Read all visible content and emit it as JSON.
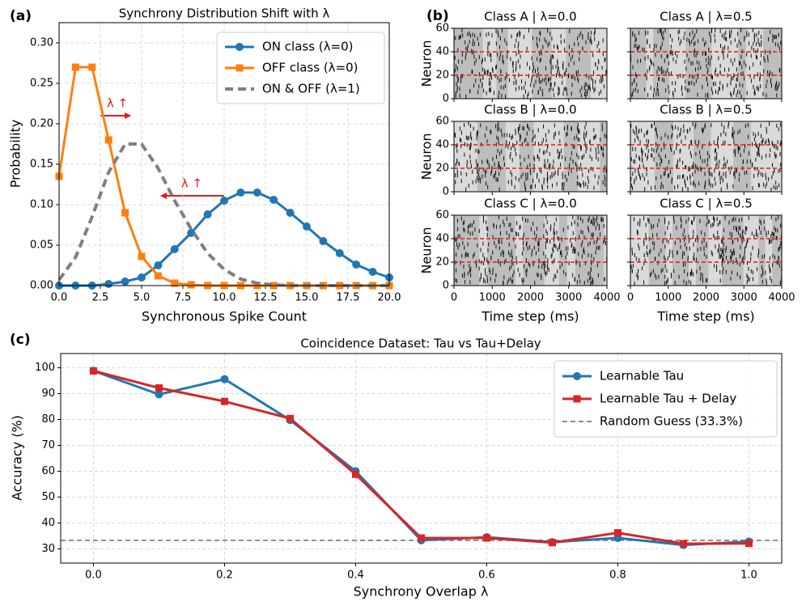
{
  "chart_data": [
    {
      "type": "line",
      "label": "(a)",
      "title": "Synchrony Distribution Shift with λ",
      "xlabel": "Synchronous Spike Count",
      "ylabel": "Probability",
      "x": [
        0,
        1,
        2,
        3,
        4,
        5,
        6,
        7,
        8,
        9,
        10,
        11,
        12,
        13,
        14,
        15,
        16,
        17,
        18,
        19,
        20
      ],
      "series": [
        {
          "name": "ON class (λ=0)",
          "color": "#1f77b4",
          "marker": "circle",
          "dash": "solid",
          "values": [
            0,
            0,
            0,
            0.002,
            0.005,
            0.01,
            0.025,
            0.045,
            0.065,
            0.088,
            0.105,
            0.115,
            0.115,
            0.106,
            0.09,
            0.073,
            0.055,
            0.04,
            0.026,
            0.017,
            0.01
          ]
        },
        {
          "name": "OFF class (λ=0)",
          "color": "#ff7f0e",
          "marker": "square",
          "dash": "solid",
          "values": [
            0.135,
            0.27,
            0.27,
            0.18,
            0.09,
            0.036,
            0.012,
            0.003,
            0.001,
            0,
            0,
            0,
            0,
            0,
            0,
            0,
            0,
            0,
            0,
            0,
            0
          ]
        },
        {
          "name": "ON & OFF (λ=1)",
          "color": "#7f7f7f",
          "marker": "none",
          "dash": "dashed",
          "values": [
            0.007,
            0.035,
            0.085,
            0.14,
            0.175,
            0.175,
            0.145,
            0.105,
            0.07,
            0.04,
            0.02,
            0.008,
            0.003,
            0.001,
            0,
            0,
            0,
            0,
            0,
            0,
            0
          ]
        }
      ],
      "xlim": [
        0,
        20
      ],
      "xticks": [
        {
          "value": 0,
          "label": "0.0"
        },
        2.5,
        {
          "value": 5,
          "label": "5.0"
        },
        7.5,
        {
          "value": 10,
          "label": "10.0"
        },
        12.5,
        {
          "value": 15,
          "label": "15.0"
        },
        17.5,
        {
          "value": 20,
          "label": "20.0"
        }
      ],
      "ylim": [
        0,
        0.325
      ],
      "yticks": [
        {
          "value": 0,
          "label": "0.00"
        },
        {
          "value": 0.05,
          "label": "0.05"
        },
        {
          "value": 0.1,
          "label": "0.10"
        },
        {
          "value": 0.15,
          "label": "0.15"
        },
        {
          "value": 0.2,
          "label": "0.20"
        },
        {
          "value": 0.25,
          "label": "0.25"
        },
        {
          "value": 0.3,
          "label": "0.30"
        }
      ],
      "grid": true,
      "legend": "upper right",
      "annotations": [
        "λ ↑",
        "λ ↑"
      ]
    },
    {
      "type": "raster",
      "label": "(b)",
      "xlabel": "Time step (ms)",
      "ylabel": "Neuron",
      "subplots": [
        {
          "title": "Class A | λ=0.0"
        },
        {
          "title": "Class A | λ=0.5"
        },
        {
          "title": "Class B | λ=0.0"
        },
        {
          "title": "Class B | λ=0.5"
        },
        {
          "title": "Class C | λ=0.0"
        },
        {
          "title": "Class C | λ=0.5"
        }
      ],
      "xlim": [
        0,
        4000
      ],
      "xticks": [
        0,
        1000,
        2000,
        3000,
        4000
      ],
      "ylim": [
        0,
        60
      ],
      "yticks": [
        0,
        20,
        40,
        60
      ],
      "boundaries": [
        20,
        40
      ],
      "boundary_color": "#e8191a"
    },
    {
      "type": "line",
      "label": "(c)",
      "title": "Coincidence Dataset: Tau vs Tau+Delay",
      "xlabel": "Synchrony Overlap λ",
      "ylabel": "Accuracy (%)",
      "x": [
        0,
        0.1,
        0.2,
        0.3,
        0.4,
        0.5,
        0.6,
        0.7,
        0.8,
        0.9,
        1.0
      ],
      "series": [
        {
          "name": "Learnable Tau",
          "color": "#1f77b4",
          "marker": "circle",
          "dash": "solid",
          "values": [
            98.8,
            89.7,
            95.6,
            79.8,
            60.0,
            33.3,
            34.5,
            32.6,
            34.2,
            31.5,
            32.8
          ]
        },
        {
          "name": "Learnable Tau + Delay",
          "color": "#d62728",
          "marker": "square",
          "dash": "solid",
          "values": [
            98.8,
            92.2,
            87.0,
            80.4,
            58.8,
            34.2,
            34.2,
            32.4,
            36.2,
            32.0,
            32.1
          ]
        }
      ],
      "reference_line": {
        "name": "Random Guess (33.3%)",
        "value": 33.3,
        "color": "#7f7f7f"
      },
      "xlim": [
        -0.05,
        1.05
      ],
      "xticks": [
        {
          "value": 0,
          "label": "0.0"
        },
        0.2,
        0.4,
        0.6,
        0.8,
        {
          "value": 1,
          "label": "1.0"
        }
      ],
      "ylim": [
        24.5,
        105.5
      ],
      "yticks": [
        30,
        40,
        50,
        60,
        70,
        80,
        90,
        100
      ],
      "grid": true,
      "legend": "upper right"
    }
  ]
}
